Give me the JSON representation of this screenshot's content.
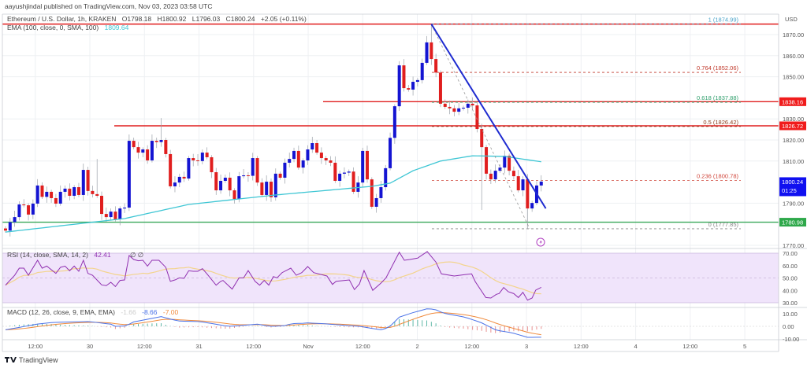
{
  "header": {
    "published": "aayushjindal published on TradingView.com, Nov 03, 2023 03:58 UTC",
    "symbol": "Ethereum / U.S. Dollar, 1h, KRAKEN",
    "open": "O1798.18",
    "high": "H1800.92",
    "low": "L1796.03",
    "close": "C1800.24",
    "change": "+2.05 (+0.11%)"
  },
  "ema_legend": {
    "label": "EMA (100, close, 0, SMA, 100)",
    "value": "1809.64"
  },
  "rsi_legend": {
    "label": "RSI (14, close, SMA, 14, 2)",
    "value": "42.41",
    "extra": "∅  ∅"
  },
  "macd_legend": {
    "label": "MACD (12, 26, close, 9, EMA, EMA)",
    "hist": "-1.66",
    "macd": "-8.66",
    "signal": "-7.00"
  },
  "price_axis": {
    "currency": "USD",
    "ticks": [
      "1870.00",
      "1860.00",
      "1850.00",
      "1830.00",
      "1820.00",
      "1810.00",
      "1790.00",
      "1770.00"
    ],
    "tick_values": [
      1870,
      1860,
      1850,
      1830,
      1820,
      1810,
      1790,
      1770
    ],
    "tags": [
      {
        "label": "1838.16",
        "value": 1838.16,
        "color": "#f01c1c"
      },
      {
        "label": "1826.72",
        "value": 1826.72,
        "color": "#f01c1c"
      },
      {
        "label": "1800.24",
        "sub": "01:25",
        "value": 1800.24,
        "color": "#1010f0"
      },
      {
        "label": "1780.98",
        "value": 1780.98,
        "color": "#2ea84a"
      }
    ]
  },
  "rsi_axis": {
    "ticks": [
      "70.00",
      "60.00",
      "50.00",
      "40.00",
      "30.00"
    ],
    "tick_values": [
      70,
      60,
      50,
      40,
      30
    ]
  },
  "macd_axis": {
    "ticks": [
      "10.00",
      "0.00",
      "-10.00"
    ],
    "tick_values": [
      10,
      0,
      -10
    ]
  },
  "time_axis": {
    "labels": [
      "12:00",
      "30",
      "12:00",
      "31",
      "12:00",
      "Nov",
      "12:00",
      "2",
      "12:00",
      "3",
      "12:00",
      "4",
      "12:00",
      "5"
    ]
  },
  "fib_levels": [
    {
      "label": "1 (1874.99)",
      "value": 1874.99,
      "color": "#4aa3c9"
    },
    {
      "label": "0.764 (1852.06)",
      "value": 1852.06,
      "color": "#c0392b"
    },
    {
      "label": "0.618 (1837.88)",
      "value": 1837.88,
      "color": "#2e9e6b"
    },
    {
      "label": "0.5 (1826.42)",
      "value": 1826.42,
      "color": "#8b3a1a"
    },
    {
      "label": "0.236 (1800.78)",
      "value": 1800.78,
      "color": "#d0453a"
    },
    {
      "label": "0 (1777.85)",
      "value": 1777.85,
      "color": "#888888"
    }
  ],
  "footer": {
    "brand": "TradingView"
  },
  "colors": {
    "bull": "#1414d2",
    "bear": "#e01e1e",
    "ema": "#3ec6d4",
    "rsi": "#9030b0",
    "rsi_sma": "#f3d48c",
    "rsi_band": "#f0e4fb",
    "macd": "#4a72e8",
    "signal": "#f08a3c",
    "trendline": "#1e2bd0",
    "resistance": "#e01e1e",
    "support": "#3aa85a"
  },
  "chart_data": {
    "type": "candlestick",
    "interval": "1h",
    "first_open": 1778,
    "closes": [
      1777,
      1781,
      1783.4,
      1789.4,
      1789,
      1784.6,
      1789.8,
      1798.4,
      1793,
      1795.4,
      1792.4,
      1789.8,
      1795.4,
      1796.9,
      1793.5,
      1797.6,
      1793.9,
      1805.8,
      1795.8,
      1794.3,
      1793.5,
      1784.9,
      1783.4,
      1786,
      1782.3,
      1787.5,
      1787.9,
      1819.6,
      1816.6,
      1814,
      1815.5,
      1810.3,
      1819.6,
      1819,
      1820,
      1813.3,
      1798,
      1799.8,
      1802.5,
      1801.7,
      1811.4,
      1810.3,
      1810,
      1814,
      1811.8,
      1804.7,
      1796.1,
      1800.6,
      1802.1,
      1796.1,
      1792,
      1802.8,
      1803.2,
      1803,
      1811.4,
      1799.8,
      1793.9,
      1800.2,
      1792.8,
      1804,
      1802.1,
      1809.2,
      1811,
      1814.8,
      1806.9,
      1810.3,
      1815.5,
      1818.5,
      1814,
      1811.4,
      1810.3,
      1809.2,
      1800.6,
      1804,
      1804.5,
      1805,
      1795.4,
      1799.8,
      1814.8,
      1801.3,
      1788.3,
      1792.4,
      1797.6,
      1806.6,
      1821,
      1836,
      1855.4,
      1844.6,
      1843.9,
      1847.6,
      1848.4,
      1856.6,
      1866.3,
      1858.4,
      1852,
      1837.2,
      1835.7,
      1835,
      1833.4,
      1835,
      1835.3,
      1837.2,
      1836.4,
      1825.2,
      1816.6,
      1804,
      1801.3,
      1805.4,
      1806.9,
      1812.5,
      1805.4,
      1802.8,
      1796.1,
      1801.3,
      1787.5,
      1790.1,
      1798.4,
      1800.24
    ],
    "extremes": [
      {
        "i": 93,
        "high": 1874.99
      },
      {
        "i": 114,
        "low": 1777.85
      },
      {
        "i": 34,
        "high": 1830.4
      },
      {
        "i": 20,
        "high": 1811
      },
      {
        "i": 104,
        "low": 1786.8
      }
    ],
    "ema100": [
      [
        0,
        1776.3
      ],
      [
        26,
        1782.7
      ],
      [
        40,
        1789.4
      ],
      [
        59,
        1793.9
      ],
      [
        80,
        1798
      ],
      [
        84,
        1799.5
      ],
      [
        89,
        1805.4
      ],
      [
        95,
        1810
      ],
      [
        102,
        1812.5
      ],
      [
        109,
        1812.2
      ],
      [
        117,
        1809.64
      ]
    ],
    "rsi": [
      [
        0,
        44.2
      ],
      [
        2,
        52.2
      ],
      [
        3,
        57.9
      ],
      [
        4,
        57.9
      ],
      [
        5,
        52.2
      ],
      [
        7,
        64.3
      ],
      [
        8,
        57.9
      ],
      [
        9,
        59.6
      ],
      [
        11,
        53.7
      ],
      [
        12,
        58.6
      ],
      [
        13,
        59.6
      ],
      [
        14,
        55.8
      ],
      [
        15,
        59.6
      ],
      [
        16,
        55.4
      ],
      [
        17,
        64.3
      ],
      [
        18,
        53.7
      ],
      [
        19,
        52.2
      ],
      [
        21,
        44.4
      ],
      [
        22,
        43.8
      ],
      [
        23,
        46.5
      ],
      [
        24,
        43.1
      ],
      [
        25,
        48
      ],
      [
        26,
        48.4
      ],
      [
        27,
        68.1
      ],
      [
        28,
        64.9
      ],
      [
        29,
        63.9
      ],
      [
        30,
        64.3
      ],
      [
        31,
        59.6
      ],
      [
        32,
        64.3
      ],
      [
        33.5,
        64.3
      ],
      [
        35,
        58.6
      ],
      [
        36,
        47.3
      ],
      [
        37,
        48.4
      ],
      [
        38,
        50.1
      ],
      [
        39,
        49.7
      ],
      [
        40,
        55.8
      ],
      [
        41,
        55.4
      ],
      [
        42,
        55.4
      ],
      [
        43,
        57.5
      ],
      [
        44,
        53.3
      ],
      [
        46,
        44.2
      ],
      [
        47,
        47.3
      ],
      [
        47.5,
        48
      ],
      [
        49.5,
        41
      ],
      [
        51,
        50.1
      ],
      [
        52,
        50.1
      ],
      [
        53,
        56
      ],
      [
        54.5,
        47.3
      ],
      [
        55.5,
        44.2
      ],
      [
        56.5,
        48
      ],
      [
        57.5,
        44.2
      ],
      [
        58.5,
        51.1
      ],
      [
        59.3,
        50.1
      ],
      [
        60.4,
        54.3
      ],
      [
        62.3,
        57.9
      ],
      [
        63.5,
        52.2
      ],
      [
        64.7,
        54.3
      ],
      [
        66,
        59.2
      ],
      [
        67.3,
        54.3
      ],
      [
        70.2,
        51.6
      ],
      [
        71.4,
        44.8
      ],
      [
        72.2,
        47.3
      ],
      [
        75.1,
        48.4
      ],
      [
        76.2,
        40.6
      ],
      [
        77.3,
        45.2
      ],
      [
        78.3,
        56
      ],
      [
        80.2,
        40
      ],
      [
        82,
        45.9
      ],
      [
        83.1,
        50.1
      ],
      [
        86,
        70.8
      ],
      [
        87.1,
        64.3
      ],
      [
        88.3,
        64.9
      ],
      [
        90,
        66
      ],
      [
        92.1,
        71.3
      ],
      [
        94,
        62.8
      ],
      [
        95.2,
        53.3
      ],
      [
        98,
        51.6
      ],
      [
        100.3,
        52.7
      ],
      [
        101.8,
        53.3
      ],
      [
        102.6,
        47
      ],
      [
        104.9,
        34.2
      ],
      [
        106,
        33.8
      ],
      [
        107.2,
        36.8
      ],
      [
        107.8,
        37.4
      ],
      [
        108.8,
        42.3
      ],
      [
        109.8,
        38.9
      ],
      [
        111,
        37.4
      ],
      [
        112,
        34.2
      ],
      [
        113,
        38.4
      ],
      [
        114,
        32.1
      ],
      [
        115,
        33.8
      ],
      [
        115.8,
        40.2
      ],
      [
        117,
        42.41
      ]
    ],
    "macd": [
      [
        0,
        -2.7
      ],
      [
        3.4,
        -0.6
      ],
      [
        6.8,
        1.7
      ],
      [
        10.3,
        3.1
      ],
      [
        14.9,
        3.5
      ],
      [
        18.3,
        3.75
      ],
      [
        23,
        1.7
      ],
      [
        24,
        0
      ],
      [
        26.3,
        0.4
      ],
      [
        28,
        3.5
      ],
      [
        31,
        5.6
      ],
      [
        34,
        7.7
      ],
      [
        35.5,
        6.25
      ],
      [
        37.8,
        4.2
      ],
      [
        42.4,
        3.75
      ],
      [
        45.3,
        2.1
      ],
      [
        48.7,
        0
      ],
      [
        52.7,
        1
      ],
      [
        55,
        1.7
      ],
      [
        57.9,
        0
      ],
      [
        60.8,
        0.4
      ],
      [
        62.5,
        2.1
      ],
      [
        65.4,
        2.5
      ],
      [
        66,
        2.7
      ],
      [
        69.4,
        2.1
      ],
      [
        73.3,
        1
      ],
      [
        77.4,
        0
      ],
      [
        79.7,
        -1.5
      ],
      [
        82,
        -2.7
      ],
      [
        83.7,
        -1
      ],
      [
        86,
        7.3
      ],
      [
        88.9,
        10.8
      ],
      [
        92.3,
        14.2
      ],
      [
        94,
        13.1
      ],
      [
        95.7,
        10.4
      ],
      [
        100.3,
        7.3
      ],
      [
        103.8,
        3.1
      ],
      [
        107.2,
        -3.1
      ],
      [
        110.7,
        -5.2
      ],
      [
        114,
        -8.75
      ],
      [
        117,
        -8.66
      ]
    ],
    "horizontal_levels": [
      {
        "value": 1874.99,
        "kind": "resistance"
      },
      {
        "value": 1838.16,
        "kind": "resistance"
      },
      {
        "value": 1826.72,
        "kind": "resistance"
      },
      {
        "value": 1780.98,
        "kind": "support"
      }
    ],
    "trendline": {
      "from": {
        "i": 93,
        "price": 1874.99
      },
      "to": {
        "i": 118,
        "price": 1787.5
      }
    }
  }
}
